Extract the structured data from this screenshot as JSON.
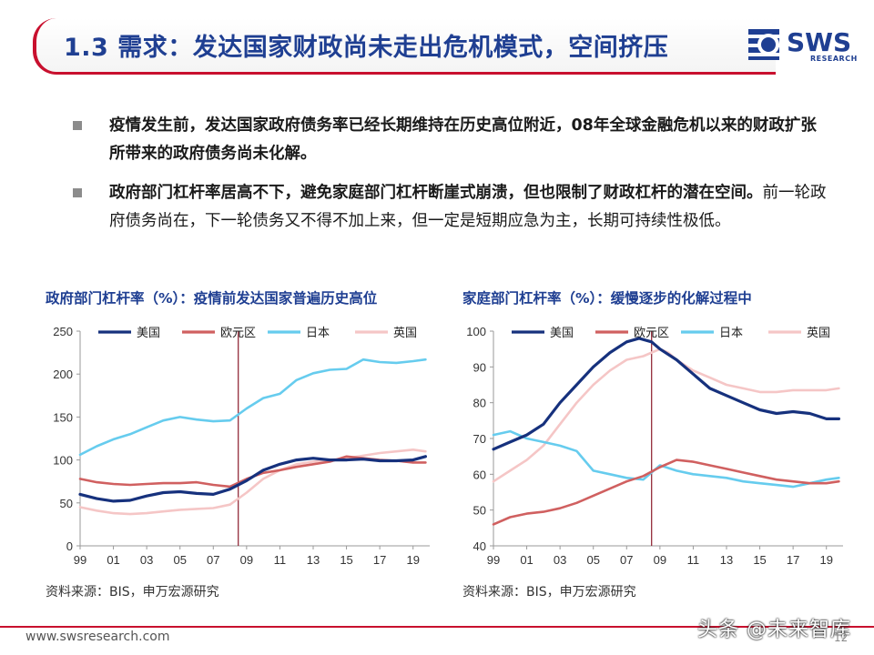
{
  "slide": {
    "title": "1.3 需求：发达国家财政尚未走出危机模式，空间挤压",
    "logo_text": "SWS",
    "logo_sub": "RESEARCH",
    "bullets": [
      {
        "bold": "疫情发生前，发达国家政府债务率已经长期维持在历史高位附近，08年全球金融危机以来的财政扩张所带来的政府债务尚未化解。",
        "rest": ""
      },
      {
        "bold": "政府部门杠杆率居高不下，避免家庭部门杠杆断崖式崩溃，但也限制了财政杠杆的潜在空间。",
        "rest": "前一轮政府债务尚在，下一轮债务又不得不加上来，但一定是短期应急为主，长期可持续性极低。"
      }
    ],
    "footer_url": "www.swsresearch.com",
    "page_number": "12",
    "watermark": "头条 @未来智库",
    "colors": {
      "brand_blue": "#1f3f92",
      "brand_red": "#c8102e"
    }
  },
  "chart_data": [
    {
      "type": "line",
      "title": "政府部门杠杆率（%）：疫情前发达国家普遍历史高位",
      "source": "资料来源：BIS，申万宏源研究",
      "x_ticks": [
        "99",
        "01",
        "03",
        "05",
        "07",
        "09",
        "11",
        "13",
        "15",
        "17",
        "19"
      ],
      "x_range": [
        1999,
        2020
      ],
      "ylim": [
        0,
        250
      ],
      "y_ticks": [
        "0",
        "50",
        "100",
        "150",
        "200",
        "250"
      ],
      "vline_x": 2008.5,
      "legend_position": "top",
      "series": [
        {
          "name": "美国",
          "color": "#16317d",
          "x": [
            1999,
            2000,
            2001,
            2002,
            2003,
            2004,
            2005,
            2006,
            2007,
            2008,
            2009,
            2010,
            2011,
            2012,
            2013,
            2014,
            2015,
            2016,
            2017,
            2018,
            2019,
            2019.75
          ],
          "y": [
            60,
            55,
            52,
            53,
            58,
            62,
            63,
            61,
            60,
            66,
            76,
            88,
            95,
            100,
            102,
            100,
            100,
            101,
            99,
            99,
            100,
            104
          ]
        },
        {
          "name": "欧元区",
          "color": "#d06060",
          "x": [
            1999,
            2000,
            2001,
            2002,
            2003,
            2004,
            2005,
            2006,
            2007,
            2008,
            2009,
            2010,
            2011,
            2012,
            2013,
            2014,
            2015,
            2016,
            2017,
            2018,
            2019,
            2019.75
          ],
          "y": [
            78,
            74,
            72,
            71,
            72,
            73,
            73,
            74,
            71,
            69,
            78,
            85,
            88,
            92,
            95,
            98,
            104,
            102,
            100,
            99,
            97,
            97
          ]
        },
        {
          "name": "日本",
          "color": "#66ccee",
          "x": [
            1999,
            2000,
            2001,
            2002,
            2003,
            2004,
            2005,
            2006,
            2007,
            2008,
            2009,
            2010,
            2011,
            2012,
            2013,
            2014,
            2015,
            2016,
            2017,
            2018,
            2019,
            2019.75
          ],
          "y": [
            106,
            116,
            124,
            130,
            138,
            146,
            150,
            147,
            145,
            146,
            160,
            172,
            177,
            193,
            201,
            205,
            206,
            217,
            214,
            213,
            215,
            217
          ]
        },
        {
          "name": "英国",
          "color": "#f5c6c6",
          "x": [
            1999,
            2000,
            2001,
            2002,
            2003,
            2004,
            2005,
            2006,
            2007,
            2008,
            2009,
            2010,
            2011,
            2012,
            2013,
            2014,
            2015,
            2016,
            2017,
            2018,
            2019,
            2019.75
          ],
          "y": [
            45,
            41,
            38,
            37,
            38,
            40,
            42,
            43,
            44,
            48,
            62,
            78,
            88,
            95,
            98,
            100,
            102,
            105,
            108,
            110,
            112,
            110
          ]
        }
      ]
    },
    {
      "type": "line",
      "title": "家庭部门杠杆率（%）：缓慢逐步的化解过程中",
      "source": "资料来源：BIS，申万宏源研究",
      "x_ticks": [
        "99",
        "01",
        "03",
        "05",
        "07",
        "09",
        "11",
        "13",
        "15",
        "17",
        "19"
      ],
      "x_range": [
        1999,
        2020
      ],
      "ylim": [
        40,
        100
      ],
      "y_ticks": [
        "40",
        "50",
        "60",
        "70",
        "80",
        "90",
        "100"
      ],
      "vline_x": 2008.5,
      "legend_position": "top",
      "series": [
        {
          "name": "美国",
          "color": "#16317d",
          "x": [
            1999,
            2000,
            2001,
            2002,
            2003,
            2004,
            2005,
            2006,
            2007,
            2007.75,
            2008.5,
            2009,
            2010,
            2011,
            2012,
            2013,
            2014,
            2015,
            2016,
            2017,
            2018,
            2019,
            2019.75
          ],
          "y": [
            67,
            69,
            71,
            74,
            80,
            85,
            90,
            94,
            97,
            98,
            97,
            95,
            92,
            88,
            84,
            82,
            80,
            78,
            77,
            77.5,
            77,
            75.5,
            75.5
          ]
        },
        {
          "name": "欧元区",
          "color": "#d06060",
          "x": [
            1999,
            2000,
            2001,
            2002,
            2003,
            2004,
            2005,
            2006,
            2007,
            2008,
            2009,
            2010,
            2011,
            2012,
            2013,
            2014,
            2015,
            2016,
            2017,
            2018,
            2019,
            2019.75
          ],
          "y": [
            46,
            48,
            49,
            49.5,
            50.5,
            52,
            54,
            56,
            58,
            59.5,
            62,
            64,
            63.5,
            62.5,
            61.5,
            60.5,
            59.5,
            58.5,
            58,
            57.5,
            57.5,
            58
          ]
        },
        {
          "name": "日本",
          "color": "#66ccee",
          "x": [
            1999,
            2000,
            2001,
            2002,
            2003,
            2004,
            2005,
            2006,
            2007,
            2008,
            2009,
            2010,
            2011,
            2012,
            2013,
            2014,
            2015,
            2016,
            2017,
            2018,
            2019,
            2019.75
          ],
          "y": [
            71,
            72,
            70,
            69,
            68,
            66.5,
            61,
            60,
            59,
            58.5,
            62.5,
            61,
            60,
            59.5,
            59,
            58,
            57.5,
            57,
            56.5,
            57.5,
            58.5,
            59
          ]
        },
        {
          "name": "英国",
          "color": "#f5c6c6",
          "x": [
            1999,
            2000,
            2001,
            2002,
            2003,
            2004,
            2005,
            2006,
            2007,
            2008,
            2009,
            2009.5,
            2010,
            2011,
            2012,
            2013,
            2014,
            2015,
            2016,
            2017,
            2018,
            2019,
            2019.75
          ],
          "y": [
            58,
            61,
            64,
            68,
            74,
            80,
            85,
            89,
            92,
            93,
            95,
            94,
            92,
            89,
            87,
            85,
            84,
            83,
            83,
            83.5,
            83.5,
            83.5,
            84
          ]
        }
      ]
    }
  ]
}
